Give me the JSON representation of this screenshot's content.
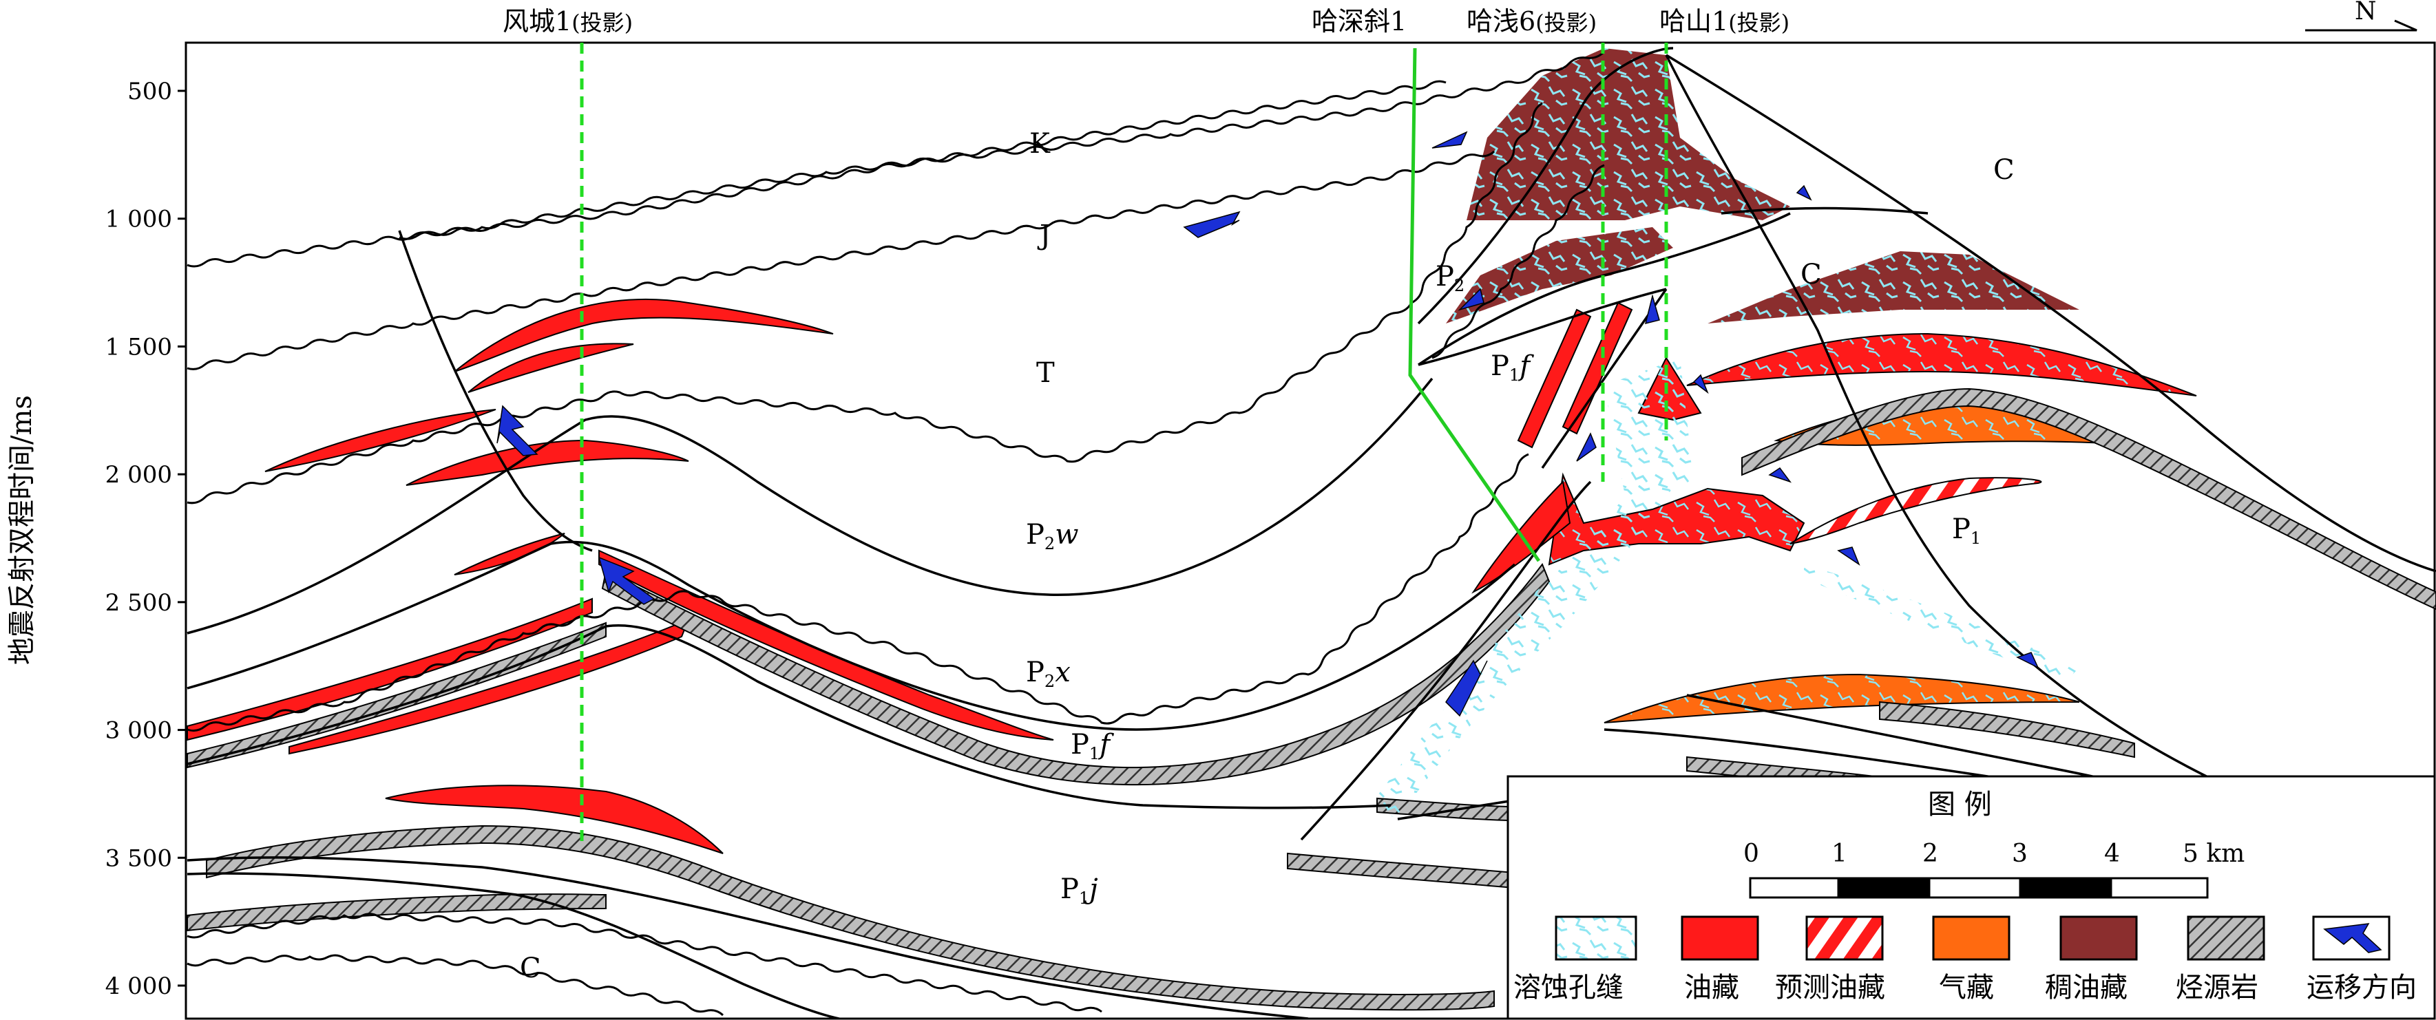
{
  "axis": {
    "ylabel": "地震反射双程时间/ms",
    "ticks": [
      "500",
      "1 000",
      "1 500",
      "2 000",
      "2 500",
      "3 000",
      "3 500",
      "4 000"
    ],
    "tick_values": [
      500,
      1000,
      1500,
      2000,
      2500,
      3000,
      3500,
      4000
    ]
  },
  "wells": [
    {
      "label": "风城1",
      "note": "(投影)"
    },
    {
      "label": "哈深斜1",
      "note": ""
    },
    {
      "label": "哈浅6",
      "note": "(投影)"
    },
    {
      "label": "哈山1",
      "note": "(投影)"
    }
  ],
  "north_arrow": "N",
  "strata": {
    "K": "K",
    "J": "J",
    "T": "T",
    "P2w": {
      "base": "P",
      "sub": "2",
      "rest": "w"
    },
    "P2x": {
      "base": "P",
      "sub": "2",
      "rest": "x"
    },
    "P1f_left": {
      "base": "P",
      "sub": "1",
      "rest": "f"
    },
    "P1j": {
      "base": "P",
      "sub": "1",
      "rest": "j"
    },
    "C_left": "C",
    "C_right_top": "C",
    "C_right_mid": "C",
    "P2_right": {
      "base": "P",
      "sub": "2",
      "rest": ""
    },
    "P1f_right": {
      "base": "P",
      "sub": "1",
      "rest": "f"
    },
    "P1_right": {
      "base": "P",
      "sub": "1",
      "rest": ""
    }
  },
  "legend": {
    "title": "图 例",
    "scale_labels": [
      "0",
      "1",
      "2",
      "3",
      "4",
      "5 km"
    ],
    "items": [
      {
        "label": "溶蚀孔缝",
        "pattern": "fracture"
      },
      {
        "label": "油藏",
        "color": "#ff1a1a"
      },
      {
        "label": "预测油藏",
        "pattern": "stripe"
      },
      {
        "label": "气藏",
        "color": "#ff6a10"
      },
      {
        "label": "稠油藏",
        "color": "#8b2e2e"
      },
      {
        "label": "烃源岩",
        "pattern": "hatch"
      },
      {
        "label": "运移方向",
        "pattern": "arrow"
      }
    ]
  },
  "colors": {
    "oil": "#ff1a1a",
    "gas": "#ff6a10",
    "heavy_oil": "#8b2e2e",
    "fracture": "#8fe6f2",
    "well_line": "#22dd22",
    "borehole": "#22cc22",
    "arrow": "#1a2fd6"
  }
}
